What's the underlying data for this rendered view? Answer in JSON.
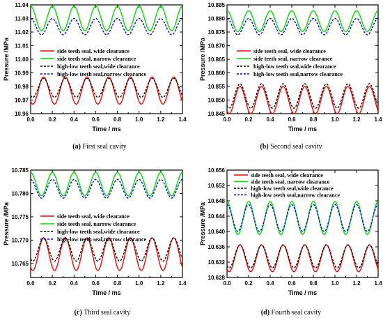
{
  "series_styles": [
    {
      "color": "#ff0000",
      "dash": ""
    },
    {
      "color": "#00dd00",
      "dash": ""
    },
    {
      "color": "#000000",
      "dash": "3,2"
    },
    {
      "color": "#0000ff",
      "dash": "3,2"
    }
  ],
  "chart_data": [
    {
      "type": "line",
      "caption_letter": "(a)",
      "caption_text": " First seal cavity",
      "xlabel": "Time / ms",
      "ylabel": "Pressure /MPa",
      "xlim": [
        0.0,
        1.4
      ],
      "ylim": [
        10.96,
        11.04
      ],
      "xticks": [
        "0.0",
        "0.2",
        "0.4",
        "0.6",
        "0.8",
        "1.0",
        "1.2",
        "1.4"
      ],
      "yticks": [
        "10.96",
        "10.97",
        "10.98",
        "10.99",
        "11.00",
        "11.01",
        "11.02",
        "11.03",
        "11.04"
      ],
      "period": 0.2,
      "legend_position": "middle-left",
      "series": [
        {
          "name": "side teeth seal, wide clearance",
          "mean": 10.977,
          "amplitude": 0.01,
          "phase": 0.12
        },
        {
          "name": "side teeth seal, narrow clearance",
          "mean": 11.03,
          "amplitude": 0.009,
          "phase": 0.0
        },
        {
          "name": "high-low teeth seal,wide clearance",
          "mean": 10.979,
          "amplitude": 0.007,
          "phase": 0.12
        },
        {
          "name": "high-low teeth seal,narrow clearance",
          "mean": 11.024,
          "amplitude": 0.006,
          "phase": 0.0
        }
      ]
    },
    {
      "type": "line",
      "caption_letter": "(b)",
      "caption_text": " Second seal cavity",
      "xlabel": "Time / ms",
      "ylabel": "Pressure /MPa",
      "xlim": [
        0.0,
        1.4
      ],
      "ylim": [
        10.845,
        10.885
      ],
      "xticks": [
        "0.0",
        "0.2",
        "0.4",
        "0.6",
        "0.8",
        "1.0",
        "1.2",
        "1.4"
      ],
      "yticks": [
        "10.845",
        "10.850",
        "10.855",
        "10.860",
        "10.865",
        "10.870",
        "10.875",
        "10.880",
        "10.885"
      ],
      "period": 0.2,
      "legend_position": "middle-left",
      "series": [
        {
          "name": "side teeth seal, wide clearance",
          "mean": 10.85,
          "amplitude": 0.005,
          "phase": 0.12
        },
        {
          "name": "side teeth seal, narrow clearance",
          "mean": 10.879,
          "amplitude": 0.0038,
          "phase": 0.0
        },
        {
          "name": "high-low teeth seal,wide clearance",
          "mean": 10.8515,
          "amplitude": 0.0045,
          "phase": 0.12
        },
        {
          "name": "high-low teeth seal,narrow clearance",
          "mean": 10.877,
          "amplitude": 0.003,
          "phase": 0.0
        }
      ]
    },
    {
      "type": "line",
      "caption_letter": "(c)",
      "caption_text": " Third seal cavity",
      "xlabel": "Time / ms",
      "ylabel": "Pressure /MPa",
      "xlim": [
        0.0,
        1.4
      ],
      "ylim": [
        10.762,
        10.785
      ],
      "xticks": [
        "0.0",
        "0.2",
        "0.4",
        "0.6",
        "0.8",
        "1.0",
        "1.2",
        "1.4"
      ],
      "yticks": [
        "10.765",
        "10.770",
        "10.775",
        "10.780",
        "10.785"
      ],
      "period": 0.2,
      "legend_position": "middle-left",
      "series": [
        {
          "name": "side teeth seal, wide clearance",
          "mean": 10.767,
          "amplitude": 0.0035,
          "phase": 0.12
        },
        {
          "name": "side teeth seal, narrow clearance",
          "mean": 10.782,
          "amplitude": 0.0025,
          "phase": 0.0
        },
        {
          "name": "high-low teeth seal,wide clearance",
          "mean": 10.768,
          "amplitude": 0.0025,
          "phase": 0.12
        },
        {
          "name": "high-low teeth seal,narrow clearance",
          "mean": 10.781,
          "amplitude": 0.002,
          "phase": 0.0
        }
      ]
    },
    {
      "type": "line",
      "caption_letter": "(d)",
      "caption_text": " Fourth seal cavity",
      "xlabel": "Time / ms",
      "ylabel": "Pressure /MPa",
      "xlim": [
        0.0,
        1.4
      ],
      "ylim": [
        10.628,
        10.656
      ],
      "xticks": [
        "0.0",
        "0.2",
        "0.4",
        "0.6",
        "0.8",
        "1.0",
        "1.2",
        "1.4"
      ],
      "yticks": [
        "10.628",
        "10.632",
        "10.636",
        "10.640",
        "10.644",
        "10.648",
        "10.652",
        "10.656"
      ],
      "period": 0.2,
      "legend_position": "top",
      "series": [
        {
          "name": "side teeth seal, wide clearance",
          "mean": 10.633,
          "amplitude": 0.0035,
          "phase": 0.12
        },
        {
          "name": "side teeth seal, narrow clearance",
          "mean": 10.6435,
          "amplitude": 0.0043,
          "phase": 0.0
        },
        {
          "name": "high-low teeth seal,wide clearance",
          "mean": 10.6335,
          "amplitude": 0.003,
          "phase": 0.12
        },
        {
          "name": "high-low teeth seal,narrow clearance",
          "mean": 10.6435,
          "amplitude": 0.0035,
          "phase": 0.0
        }
      ]
    }
  ]
}
